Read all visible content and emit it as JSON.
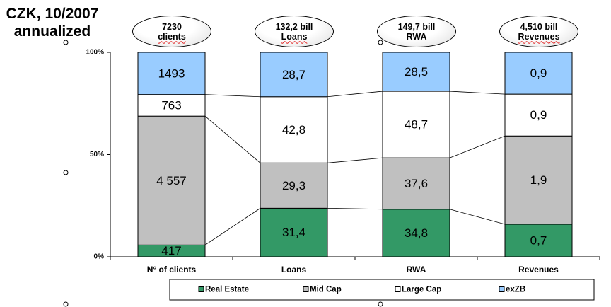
{
  "chart_data": {
    "type": "bar",
    "stacking": "percent",
    "title": [
      "CZK, 10/2007",
      "annualized"
    ],
    "annotations": [
      {
        "line1": "7230",
        "line2": "clients"
      },
      {
        "line1": "132,2 bill",
        "line2": "Loans"
      },
      {
        "line1": "149,7 bill",
        "line2": "RWA"
      },
      {
        "line1": "4,510 bill",
        "line2": "Revenues"
      }
    ],
    "categories": [
      "N° of clients",
      "Loans",
      "RWA",
      "Revenues"
    ],
    "series": [
      {
        "name": "Real Estate",
        "color": "#339966",
        "values": [
          417,
          31.4,
          34.8,
          0.7
        ],
        "labels": [
          "417",
          "31,4",
          "34,8",
          "0,7"
        ]
      },
      {
        "name": "Mid Cap",
        "color": "#C0C0C0",
        "values": [
          4557,
          29.3,
          37.6,
          1.9
        ],
        "labels": [
          "4 557",
          "29,3",
          "37,6",
          "1,9"
        ]
      },
      {
        "name": "Large Cap",
        "color": "#FFFFFF",
        "values": [
          763,
          42.8,
          48.7,
          0.9
        ],
        "labels": [
          "763",
          "42,8",
          "48,7",
          "0,9"
        ]
      },
      {
        "name": "exZB",
        "color": "#99CCFF",
        "values": [
          1493,
          28.7,
          28.5,
          0.9
        ],
        "labels": [
          "1493",
          "28,7",
          "28,5",
          "0,9"
        ]
      }
    ],
    "ylim": [
      0,
      100
    ],
    "y_ticks": [
      {
        "value": 0,
        "label": "0%"
      },
      {
        "value": 50,
        "label": "50%"
      },
      {
        "value": 100,
        "label": "100%"
      }
    ],
    "series_lines": true,
    "grid": false,
    "legend": "bottom"
  }
}
